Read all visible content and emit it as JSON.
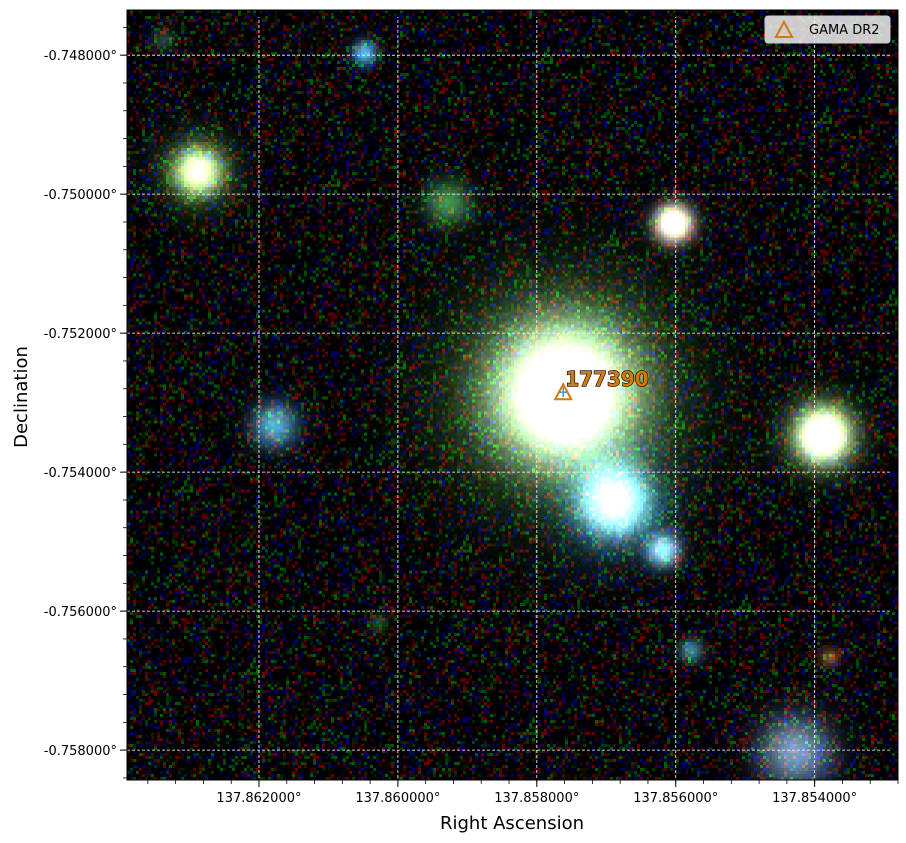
{
  "axes": {
    "xlabel": "Right Ascension",
    "ylabel": "Declination",
    "x_ticks": [
      "137.862000°",
      "137.860000°",
      "137.858000°",
      "137.856000°",
      "137.854000°"
    ],
    "y_ticks": [
      "-0.748000°",
      "-0.750000°",
      "-0.752000°",
      "-0.754000°",
      "-0.756000°",
      "-0.758000°"
    ],
    "x_tick_values": [
      137.862,
      137.86,
      137.858,
      137.856,
      137.854
    ],
    "y_tick_values": [
      -0.748,
      -0.75,
      -0.752,
      -0.754,
      -0.756,
      -0.758
    ],
    "x_range": [
      137.8639,
      137.8528
    ],
    "y_range": [
      -0.74735,
      -0.75843
    ],
    "grid": true
  },
  "legend": {
    "position": "top-right",
    "entries": [
      {
        "label": "GAMA DR2",
        "marker": "triangle-icon",
        "color": "#d4780a"
      }
    ]
  },
  "marker": {
    "label": "177390",
    "ra": 137.85762,
    "dec": -0.75285,
    "color": "#d4780a",
    "crosshair_color": "#4a90d9"
  },
  "sky": {
    "sources": [
      {
        "ra": 137.85762,
        "dec": -0.75285,
        "peak": 1.0,
        "sigma_deg": 0.00065,
        "color": "#fffdf0",
        "halo_color": "#2e8a1e",
        "halo_sigma_deg": 0.00115
      },
      {
        "ra": 137.85605,
        "dec": -0.7504,
        "peak": 1.0,
        "sigma_deg": 0.00018,
        "color": "#fff6d8"
      },
      {
        "ra": 137.8539,
        "dec": -0.75345,
        "peak": 1.0,
        "sigma_deg": 0.00025,
        "color": "#fffce0",
        "halo_color": "#3a8a20",
        "halo_sigma_deg": 0.0004
      },
      {
        "ra": 137.8629,
        "dec": -0.74965,
        "peak": 0.75,
        "sigma_deg": 0.00022,
        "color": "#f2f2c8",
        "halo_color": "#2e7a1a",
        "halo_sigma_deg": 0.0004
      },
      {
        "ra": 137.8605,
        "dec": -0.74795,
        "peak": 0.6,
        "sigma_deg": 0.00012,
        "color": "#59c8f0"
      },
      {
        "ra": 137.8593,
        "dec": -0.7501,
        "peak": 0.5,
        "sigma_deg": 0.00022,
        "color": "#52b85a"
      },
      {
        "ra": 137.8618,
        "dec": -0.7533,
        "peak": 0.6,
        "sigma_deg": 0.00022,
        "color": "#5ab8d8"
      },
      {
        "ra": 137.8569,
        "dec": -0.7544,
        "peak": 0.85,
        "sigma_deg": 0.0003,
        "color": "#b8e8f8",
        "halo_color": "#2a8ac0",
        "halo_sigma_deg": 0.0005
      },
      {
        "ra": 137.8562,
        "dec": -0.7551,
        "peak": 0.7,
        "sigma_deg": 0.00016,
        "color": "#8ad8f8"
      },
      {
        "ra": 137.8558,
        "dec": -0.75655,
        "peak": 0.45,
        "sigma_deg": 0.00012,
        "color": "#5ab8d0"
      },
      {
        "ra": 137.8543,
        "dec": -0.758,
        "peak": 0.55,
        "sigma_deg": 0.00035,
        "color": "#8ab8d8"
      },
      {
        "ra": 137.8634,
        "dec": -0.74775,
        "peak": 0.3,
        "sigma_deg": 0.00012,
        "color": "#4a8a60"
      },
      {
        "ra": 137.8603,
        "dec": -0.75615,
        "peak": 0.3,
        "sigma_deg": 0.0001,
        "color": "#3a9a40"
      },
      {
        "ra": 137.8538,
        "dec": -0.75665,
        "peak": 0.35,
        "sigma_deg": 0.0001,
        "color": "#d09040"
      }
    ]
  }
}
